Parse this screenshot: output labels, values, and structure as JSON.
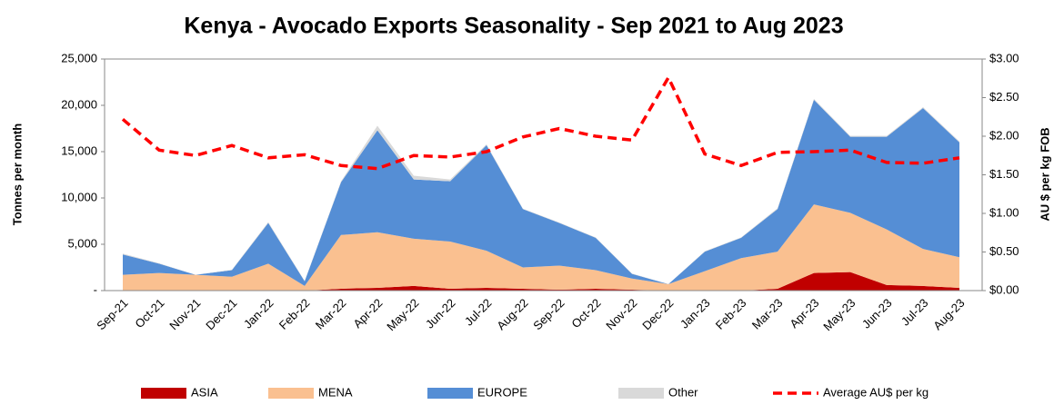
{
  "chart_data": {
    "type": "stacked_area_line",
    "title": "Kenya - Avocado Exports Seasonality - Sep 2021 to Aug 2023",
    "y_label": "Tonnes per month",
    "y2_label": "AU $ per kg FOB",
    "categories": [
      "Sep-21",
      "Oct-21",
      "Nov-21",
      "Dec-21",
      "Jan-22",
      "Feb-22",
      "Mar-22",
      "Apr-22",
      "May-22",
      "Jun-22",
      "Jul-22",
      "Aug-22",
      "Sep-22",
      "Oct-22",
      "Nov-22",
      "Dec-22",
      "Jan-23",
      "Feb-23",
      "Mar-23",
      "Apr-23",
      "May-23",
      "Jun-23",
      "Jul-23",
      "Aug-23"
    ],
    "series": [
      {
        "name": "ASIA",
        "color": "#c00000",
        "values": [
          0,
          0,
          0,
          0,
          0,
          0,
          200,
          300,
          500,
          200,
          300,
          200,
          100,
          200,
          100,
          0,
          0,
          0,
          200,
          1900,
          2000,
          600,
          500,
          300
        ]
      },
      {
        "name": "MENA",
        "color": "#fac090",
        "values": [
          1700,
          1900,
          1700,
          1500,
          2900,
          500,
          5800,
          6000,
          5100,
          5100,
          4000,
          2300,
          2600,
          2000,
          1200,
          700,
          2100,
          3500,
          4000,
          7400,
          6400,
          6000,
          4000,
          3300
        ]
      },
      {
        "name": "EUROPE",
        "color": "#558ed5",
        "values": [
          2200,
          1000,
          0,
          700,
          4400,
          500,
          5700,
          11000,
          6400,
          6500,
          11400,
          6300,
          4600,
          3500,
          500,
          0,
          2100,
          2200,
          4600,
          11300,
          8200,
          10000,
          15200,
          12400
        ]
      },
      {
        "name": "Other",
        "color": "#d9d9d9",
        "values": [
          100,
          50,
          0,
          50,
          100,
          50,
          100,
          500,
          400,
          200,
          100,
          50,
          50,
          50,
          50,
          0,
          50,
          50,
          100,
          100,
          100,
          100,
          100,
          100
        ]
      },
      {
        "name": "Average AU$ per kg",
        "color": "#ff0000",
        "type": "line",
        "dashed": true,
        "axis": "y2",
        "values": [
          2.22,
          1.82,
          1.75,
          1.88,
          1.72,
          1.76,
          1.62,
          1.58,
          1.75,
          1.73,
          1.8,
          1.99,
          2.1,
          2.0,
          1.95,
          2.76,
          1.77,
          1.62,
          1.79,
          1.8,
          1.82,
          1.66,
          1.65,
          1.72
        ]
      }
    ],
    "ylim": [
      0,
      25000
    ],
    "yticks": [
      {
        "value": 0,
        "label": "-"
      },
      {
        "value": 5000,
        "label": "5,000"
      },
      {
        "value": 10000,
        "label": "10,000"
      },
      {
        "value": 15000,
        "label": "15,000"
      },
      {
        "value": 20000,
        "label": "20,000"
      },
      {
        "value": 25000,
        "label": "25,000"
      }
    ],
    "y2lim": [
      0,
      3
    ],
    "y2ticks": [
      {
        "value": 0,
        "label": "$0.00"
      },
      {
        "value": 0.5,
        "label": "$0.50"
      },
      {
        "value": 1,
        "label": "$1.00"
      },
      {
        "value": 1.5,
        "label": "$1.50"
      },
      {
        "value": 2,
        "label": "$2.00"
      },
      {
        "value": 2.5,
        "label": "$2.50"
      },
      {
        "value": 3,
        "label": "$3.00"
      }
    ],
    "grid": false,
    "legend": "bottom"
  }
}
